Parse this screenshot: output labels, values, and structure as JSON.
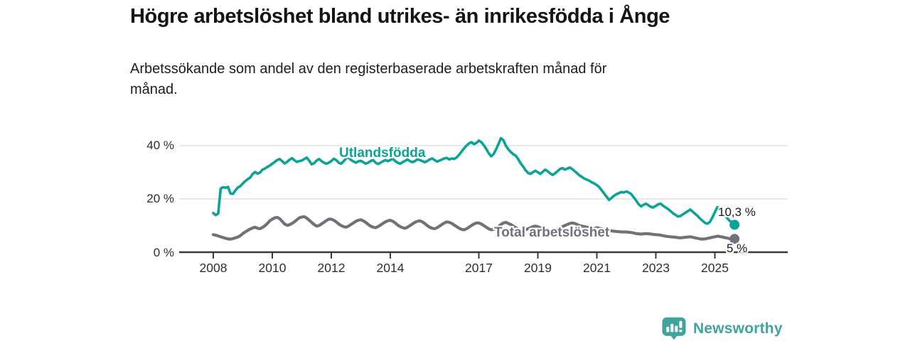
{
  "header": {
    "title": "Högre arbetslöshet bland utrikes- än inrikesfödda i Ånge",
    "subtitle_line1": "Arbetssökande som andel av den registerbaserade arbetskraften månad för",
    "subtitle_line2": "månad."
  },
  "footer": {
    "brand": "Newsworthy",
    "brand_color": "#3fa4a0"
  },
  "chart_data": {
    "type": "line",
    "title": "Högre arbetslöshet bland utrikes- än inrikesfödda i Ånge",
    "subtitle": "Arbetssökande som andel av den registerbaserade arbetskraften månad för månad.",
    "x_unit": "monthly, decimal years",
    "x_start": 2008.0,
    "points_per_year": 12,
    "x_ticks": [
      2008,
      2010,
      2012,
      2014,
      2017,
      2019,
      2021,
      2023,
      2025
    ],
    "y_ticks": [
      {
        "value": 0,
        "label": "0 %"
      },
      {
        "value": 20,
        "label": "20 %"
      },
      {
        "value": 40,
        "label": "40 %"
      }
    ],
    "ylim": [
      0,
      45
    ],
    "grid": "horizontal only",
    "legend_position": "inline labels on lines",
    "series": [
      {
        "name": "Utlandsfödda",
        "color": "#0ba396",
        "stroke_width": 3.6,
        "end_value": 10.3,
        "end_label": "10,3 %",
        "values": [
          14.7,
          13.9,
          14.5,
          23.9,
          24.4,
          24.2,
          24.5,
          22.0,
          21.9,
          23.2,
          24.3,
          24.8,
          25.8,
          26.7,
          27.4,
          28.0,
          29.3,
          30.1,
          29.5,
          29.9,
          31.0,
          31.4,
          32.0,
          32.5,
          33.2,
          33.9,
          34.6,
          35.0,
          34.2,
          33.3,
          33.9,
          34.7,
          35.3,
          34.5,
          33.9,
          34.2,
          34.4,
          35.0,
          35.5,
          34.4,
          33.0,
          33.4,
          34.4,
          35.0,
          34.2,
          33.6,
          33.2,
          33.6,
          34.2,
          35.1,
          34.6,
          33.6,
          33.2,
          34.1,
          35.2,
          35.6,
          34.6,
          34.1,
          33.6,
          34.1,
          34.3,
          33.8,
          33.2,
          33.6,
          34.2,
          34.6,
          33.6,
          33.1,
          33.6,
          34.1,
          34.6,
          34.2,
          34.6,
          35.1,
          34.2,
          33.6,
          33.2,
          33.8,
          34.3,
          34.8,
          34.2,
          33.8,
          34.2,
          34.8,
          34.6,
          34.2,
          33.8,
          34.2,
          34.8,
          35.2,
          34.6,
          34.0,
          34.4,
          34.8,
          35.2,
          35.4,
          34.8,
          35.2,
          35.0,
          35.6,
          36.6,
          37.8,
          39.0,
          40.0,
          40.8,
          41.3,
          40.6,
          41.0,
          41.9,
          41.3,
          40.2,
          38.8,
          37.2,
          36.0,
          36.8,
          38.6,
          40.6,
          42.8,
          42.0,
          40.0,
          38.6,
          37.6,
          36.8,
          36.2,
          35.0,
          33.4,
          32.2,
          30.8,
          29.8,
          29.4,
          30.0,
          30.6,
          30.0,
          29.4,
          30.2,
          31.0,
          30.4,
          29.6,
          29.0,
          29.6,
          30.4,
          31.2,
          31.6,
          31.0,
          31.4,
          31.8,
          31.2,
          30.4,
          29.6,
          28.8,
          28.2,
          27.6,
          27.2,
          26.8,
          26.2,
          25.8,
          25.2,
          24.4,
          23.2,
          22.0,
          20.8,
          19.6,
          20.4,
          21.2,
          21.8,
          22.2,
          22.6,
          22.4,
          22.8,
          22.4,
          21.8,
          20.6,
          19.4,
          18.0,
          17.2,
          17.8,
          18.2,
          17.6,
          17.0,
          16.8,
          17.4,
          18.0,
          18.2,
          17.4,
          16.8,
          16.2,
          15.4,
          14.6,
          14.0,
          13.4,
          13.6,
          14.2,
          14.8,
          15.4,
          16.0,
          15.2,
          14.4,
          13.6,
          12.6,
          11.8,
          11.0,
          10.7,
          11.4,
          13.0,
          15.0,
          16.9,
          16.4,
          15.2,
          14.0,
          12.8,
          11.8,
          11.0,
          10.3
        ]
      },
      {
        "name": "Total arbetslöshet",
        "color": "#74707a",
        "stroke_width": 4.2,
        "end_value": 5.0,
        "end_label": "5 %",
        "values": [
          6.6,
          6.4,
          6.1,
          5.8,
          5.5,
          5.2,
          5.0,
          4.9,
          5.1,
          5.4,
          5.7,
          6.2,
          7.0,
          7.6,
          8.2,
          8.7,
          9.1,
          9.4,
          9.0,
          8.8,
          9.3,
          9.9,
          10.8,
          11.8,
          12.4,
          12.9,
          13.1,
          12.6,
          11.6,
          10.6,
          10.1,
          10.3,
          10.8,
          11.4,
          12.2,
          12.9,
          13.2,
          13.3,
          12.8,
          12.0,
          11.2,
          10.4,
          9.8,
          10.0,
          10.6,
          11.2,
          11.9,
          12.4,
          12.4,
          12.0,
          11.4,
          10.6,
          10.0,
          9.6,
          9.4,
          9.8,
          10.4,
          11.0,
          11.6,
          12.0,
          12.2,
          11.8,
          11.2,
          10.4,
          9.8,
          9.4,
          9.2,
          9.6,
          10.2,
          10.8,
          11.4,
          11.8,
          12.0,
          11.6,
          11.0,
          10.2,
          9.6,
          9.2,
          9.0,
          9.4,
          10.0,
          10.6,
          11.2,
          11.6,
          11.8,
          11.4,
          10.8,
          10.0,
          9.4,
          9.0,
          8.8,
          9.2,
          9.8,
          10.4,
          11.0,
          11.4,
          11.2,
          10.8,
          10.2,
          9.6,
          9.0,
          8.6,
          8.4,
          8.8,
          9.4,
          10.0,
          10.6,
          11.0,
          11.0,
          10.6,
          10.0,
          9.4,
          8.8,
          8.4,
          8.6,
          9.0,
          9.6,
          10.4,
          11.0,
          11.2,
          10.8,
          10.4,
          9.8,
          9.2,
          8.6,
          8.2,
          8.0,
          8.4,
          8.8,
          9.2,
          9.6,
          9.8,
          9.6,
          9.2,
          8.8,
          8.4,
          8.0,
          7.8,
          8.0,
          8.4,
          8.8,
          9.2,
          9.6,
          10.0,
          10.4,
          10.8,
          11.0,
          10.8,
          10.4,
          10.0,
          9.8,
          9.6,
          9.4,
          9.2,
          9.0,
          8.8,
          9.2,
          9.0,
          8.8,
          8.6,
          8.4,
          8.2,
          8.0,
          7.9,
          7.8,
          7.7,
          7.6,
          7.6,
          7.6,
          7.5,
          7.4,
          7.2,
          7.0,
          6.9,
          6.8,
          6.9,
          7.0,
          6.9,
          6.8,
          6.7,
          6.6,
          6.5,
          6.4,
          6.2,
          6.0,
          5.9,
          5.8,
          5.7,
          5.6,
          5.5,
          5.4,
          5.5,
          5.6,
          5.7,
          5.8,
          5.6,
          5.4,
          5.2,
          5.0,
          4.9,
          5.0,
          5.2,
          5.4,
          5.6,
          5.8,
          6.0,
          5.9,
          5.7,
          5.5,
          5.3,
          5.1,
          5.0,
          5.0
        ]
      }
    ],
    "style": {
      "grid_color": "#dcdcdc",
      "axis_color": "#3a3a3a",
      "background": "#ffffff"
    }
  }
}
